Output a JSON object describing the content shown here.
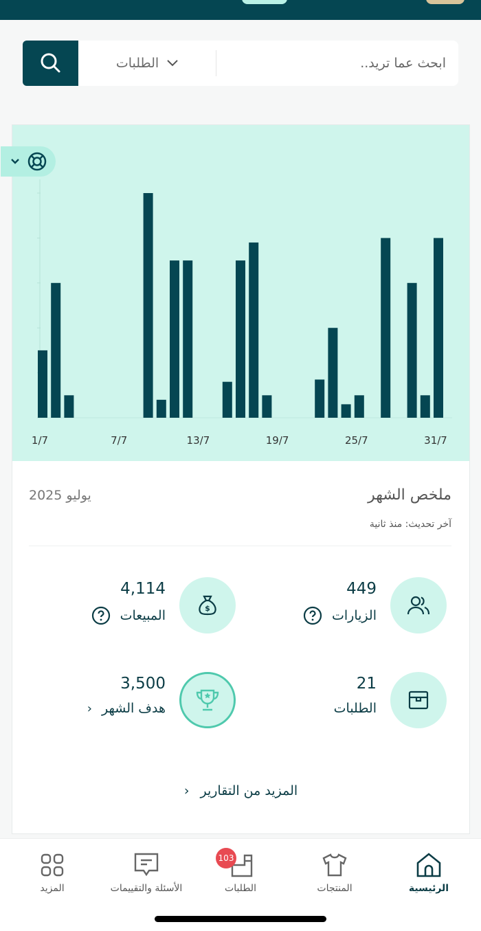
{
  "search": {
    "placeholder": "ابحث عما تريد..",
    "scope": "الطلبات"
  },
  "chart_data": {
    "type": "bar",
    "title": "",
    "xlabel": "",
    "ylabel": "",
    "x_ticks": [
      "1/7",
      "7/7",
      "13/7",
      "19/7",
      "25/7",
      "31/7"
    ],
    "days": [
      1,
      2,
      3,
      4,
      5,
      6,
      7,
      8,
      9,
      10,
      11,
      12,
      13,
      14,
      15,
      16,
      17,
      18,
      19,
      20,
      21,
      22,
      23,
      24,
      25,
      26,
      27,
      28,
      29,
      30,
      31
    ],
    "values": [
      1.5,
      3,
      0.5,
      0,
      0,
      0,
      0,
      0,
      5,
      0.4,
      3.5,
      3.5,
      0,
      0,
      0.8,
      3.5,
      3.9,
      0.5,
      0,
      0,
      0,
      0.85,
      2,
      0.3,
      0.5,
      0,
      4,
      0,
      3,
      0.5,
      4
    ],
    "ylim": [
      0,
      5
    ],
    "grid": true,
    "color": "#054652",
    "background": "#cff5ec"
  },
  "summary": {
    "title": "ملخص الشهر",
    "date": "يوليو 2025",
    "updated": "آخر تحديث: منذ ثانية"
  },
  "stats": {
    "visits": {
      "value": "449",
      "label": "الزيارات"
    },
    "sales": {
      "value": "4,114",
      "label": "المبيعات"
    },
    "orders": {
      "value": "21",
      "label": "الطلبات"
    },
    "goal": {
      "value": "3,500",
      "label": "هدف الشهر"
    }
  },
  "more_reports": "المزيد من التقارير",
  "nav": {
    "home": "الرئيسية",
    "products": "المنتجات",
    "orders": "الطلبات",
    "orders_badge": "103",
    "qa": "الأسئلة والتقييمات",
    "more": "المزيد"
  },
  "colors": {
    "primary": "#054652",
    "accent": "#cff5ec",
    "badge": "#e84a52"
  }
}
